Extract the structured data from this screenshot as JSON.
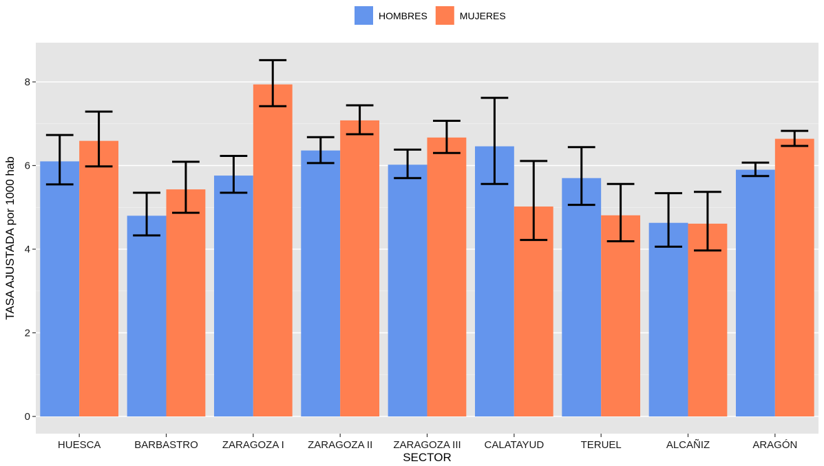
{
  "chart_data": {
    "type": "bar",
    "xlabel": "SECTOR",
    "ylabel": "TASA AJUSTADA por 1000 hab",
    "ylim": [
      0,
      9
    ],
    "yticks": [
      0,
      2,
      4,
      6,
      8
    ],
    "grid": true,
    "legend_position": "top",
    "categories": [
      "HUESCA",
      "BARBASTRO",
      "ZARAGOZA I",
      "ZARAGOZA II",
      "ZARAGOZA III",
      "CALATAYUD",
      "TERUEL",
      "ALCAÑIZ",
      "ARAGÓN"
    ],
    "series": [
      {
        "name": "HOMBRES",
        "color": "#6495ED",
        "values": [
          6.1,
          4.8,
          5.76,
          6.36,
          6.02,
          6.46,
          5.7,
          4.63,
          5.9
        ],
        "error_low": [
          5.55,
          4.33,
          5.35,
          6.06,
          5.7,
          5.56,
          5.06,
          4.06,
          5.75
        ],
        "error_high": [
          6.73,
          5.35,
          6.23,
          6.68,
          6.38,
          7.62,
          6.44,
          5.34,
          6.07
        ]
      },
      {
        "name": "MUJERES",
        "color": "#FF7F50",
        "values": [
          6.59,
          5.43,
          7.94,
          7.08,
          6.67,
          5.02,
          4.81,
          4.61,
          6.64
        ],
        "error_low": [
          5.98,
          4.87,
          7.42,
          6.75,
          6.3,
          4.22,
          4.19,
          3.97,
          6.47
        ],
        "error_high": [
          7.29,
          6.09,
          8.52,
          7.44,
          7.07,
          6.11,
          5.56,
          5.37,
          6.83
        ]
      }
    ]
  }
}
